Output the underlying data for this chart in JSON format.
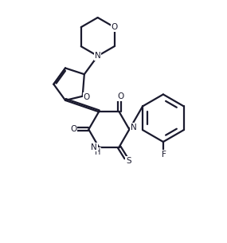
{
  "bg_color": "#ffffff",
  "line_color": "#1a1a2e",
  "line_width": 1.6,
  "figsize": [
    2.85,
    3.05
  ],
  "dpi": 100,
  "xlim": [
    0,
    10
  ],
  "ylim": [
    0,
    10.7
  ]
}
